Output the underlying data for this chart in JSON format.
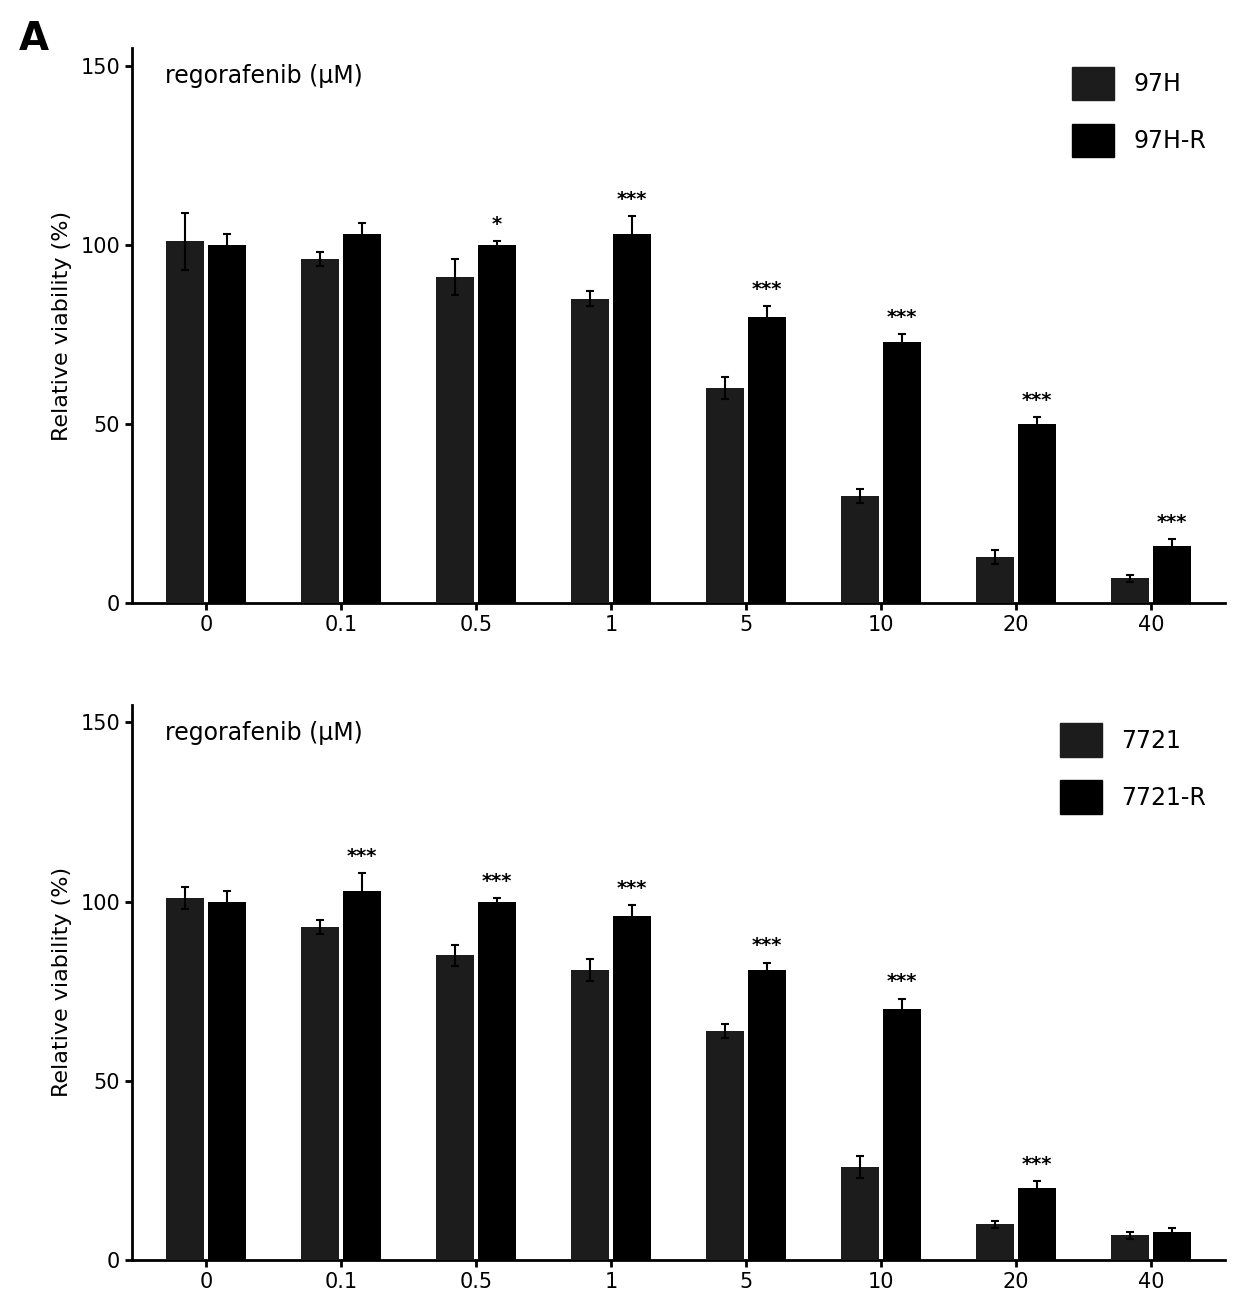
{
  "panel_A_label": "A",
  "ylabel": "Relative viability (%)",
  "title1": "regorafenib (μM)",
  "title2": "regorafenib (μM)",
  "x_tick_labels": [
    "0",
    "0.1",
    "0.5",
    "1",
    "5",
    "10",
    "20",
    "40"
  ],
  "ylim": [
    0,
    155
  ],
  "yticks": [
    0,
    50,
    100,
    150
  ],
  "bar_color1": "#1c1c1c",
  "bar_color2": "#000000",
  "bar_width": 0.28,
  "bar_gap": 0.03,
  "legend1_labels": [
    "97H",
    "97H-R"
  ],
  "legend2_labels": [
    "7721",
    "7721-R"
  ],
  "chart1": {
    "series1_values": [
      101,
      96,
      91,
      85,
      60,
      30,
      13,
      7
    ],
    "series1_errors": [
      8,
      2,
      5,
      2,
      3,
      2,
      2,
      1
    ],
    "series2_values": [
      100,
      103,
      100,
      103,
      80,
      73,
      50,
      16
    ],
    "series2_errors": [
      3,
      3,
      1,
      5,
      3,
      2,
      2,
      2
    ],
    "sig_labels": [
      "",
      "",
      "*",
      "***",
      "***",
      "***",
      "***",
      "***"
    ],
    "sig_on_bar2": [
      false,
      false,
      true,
      true,
      true,
      true,
      true,
      true
    ]
  },
  "chart2": {
    "series1_values": [
      101,
      93,
      85,
      81,
      64,
      26,
      10,
      7
    ],
    "series1_errors": [
      3,
      2,
      3,
      3,
      2,
      3,
      1,
      1
    ],
    "series2_values": [
      100,
      103,
      100,
      96,
      81,
      70,
      20,
      8
    ],
    "series2_errors": [
      3,
      5,
      1,
      3,
      2,
      3,
      2,
      1
    ],
    "sig_labels": [
      "",
      "***",
      "***",
      "***",
      "***",
      "***",
      "***",
      ""
    ],
    "sig_on_bar2": [
      false,
      true,
      true,
      true,
      true,
      true,
      true,
      false
    ]
  },
  "background_color": "#ffffff",
  "font_size_title": 17,
  "font_size_axis": 16,
  "font_size_tick": 15,
  "font_size_legend": 17,
  "font_size_sig": 14,
  "panel_label_fontsize": 28
}
